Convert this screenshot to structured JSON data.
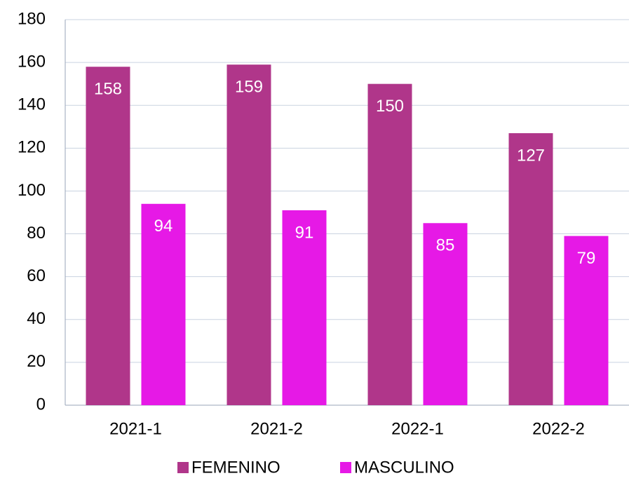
{
  "chart_data": {
    "type": "bar",
    "categories": [
      "2021-1",
      "2021-2",
      "2022-1",
      "2022-2"
    ],
    "series": [
      {
        "name": "FEMENINO",
        "color": "#b0368a",
        "values": [
          158,
          159,
          150,
          127
        ]
      },
      {
        "name": "MASCULINO",
        "color": "#e619e6",
        "values": [
          94,
          91,
          85,
          79
        ]
      }
    ],
    "ylim": [
      0,
      180
    ],
    "yticks": [
      0,
      20,
      40,
      60,
      80,
      100,
      120,
      140,
      160,
      180
    ],
    "grid": true
  }
}
